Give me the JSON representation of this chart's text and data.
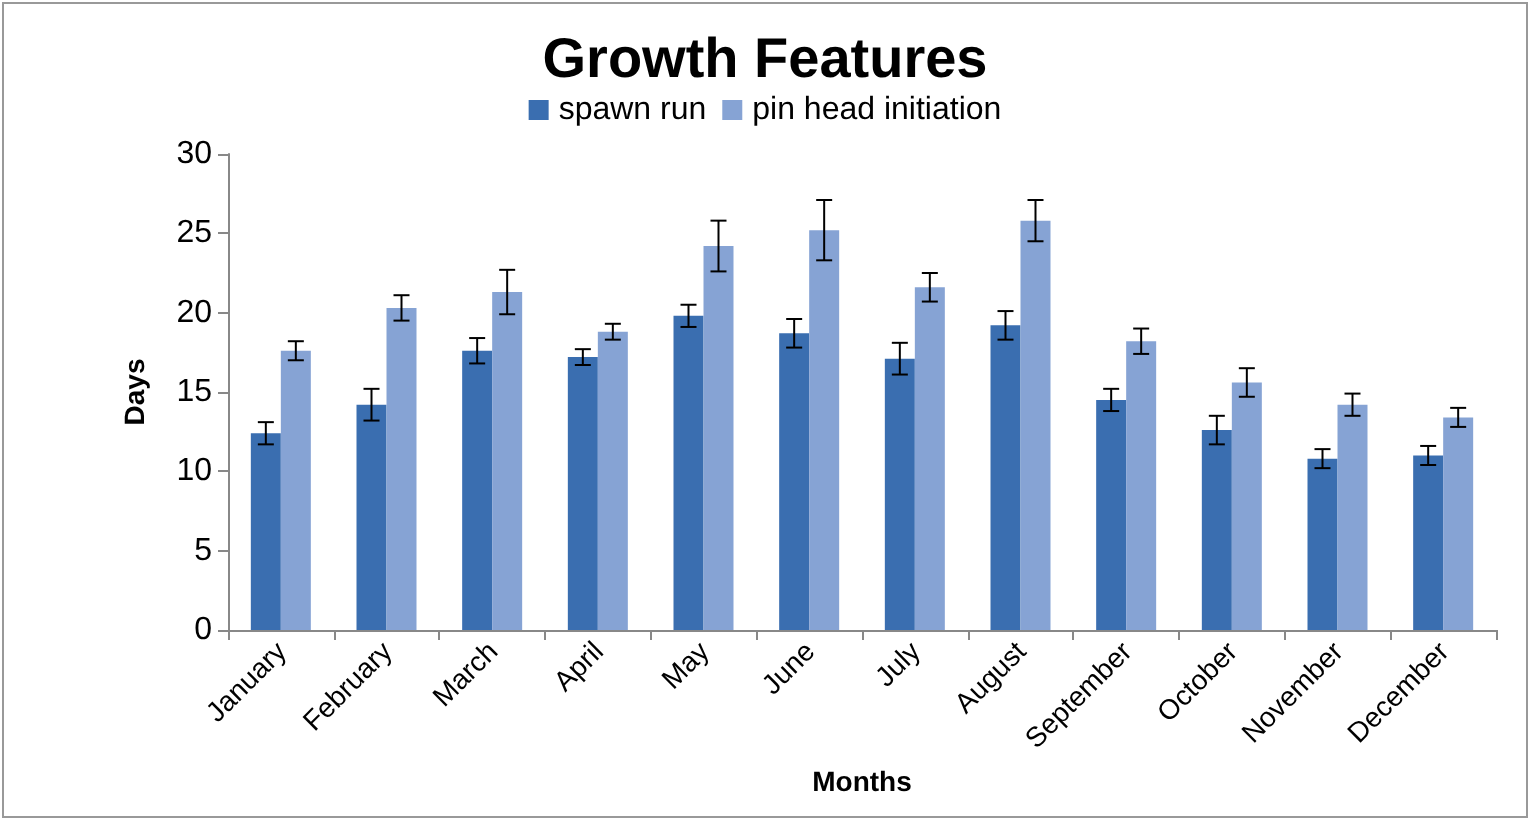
{
  "chart_data": {
    "type": "bar",
    "title": "Growth Features",
    "xlabel": "Months",
    "ylabel": "Days",
    "categories": [
      "January",
      "February",
      "March",
      "April",
      "May",
      "June",
      "July",
      "August",
      "September",
      "October",
      "November",
      "December"
    ],
    "series": [
      {
        "name": "spawn run",
        "color": "#3a6eb0",
        "values": [
          12.4,
          14.2,
          17.6,
          17.2,
          19.8,
          18.7,
          17.1,
          19.2,
          14.5,
          12.6,
          10.8,
          11.0
        ],
        "errors": [
          0.7,
          1.0,
          0.8,
          0.5,
          0.7,
          0.9,
          1.0,
          0.9,
          0.7,
          0.9,
          0.6,
          0.6
        ]
      },
      {
        "name": "pin head initiation",
        "color": "#86a3d4",
        "values": [
          17.6,
          20.3,
          21.3,
          18.8,
          24.2,
          25.2,
          21.6,
          25.8,
          18.2,
          15.6,
          14.2,
          13.4
        ],
        "errors": [
          0.6,
          0.8,
          1.4,
          0.5,
          1.6,
          1.9,
          0.9,
          1.3,
          0.8,
          0.9,
          0.7,
          0.6
        ]
      }
    ],
    "ylim": [
      0,
      30
    ],
    "yticks": [
      0,
      5,
      10,
      15,
      20,
      25,
      30
    ],
    "grid": false,
    "legend": "top"
  }
}
